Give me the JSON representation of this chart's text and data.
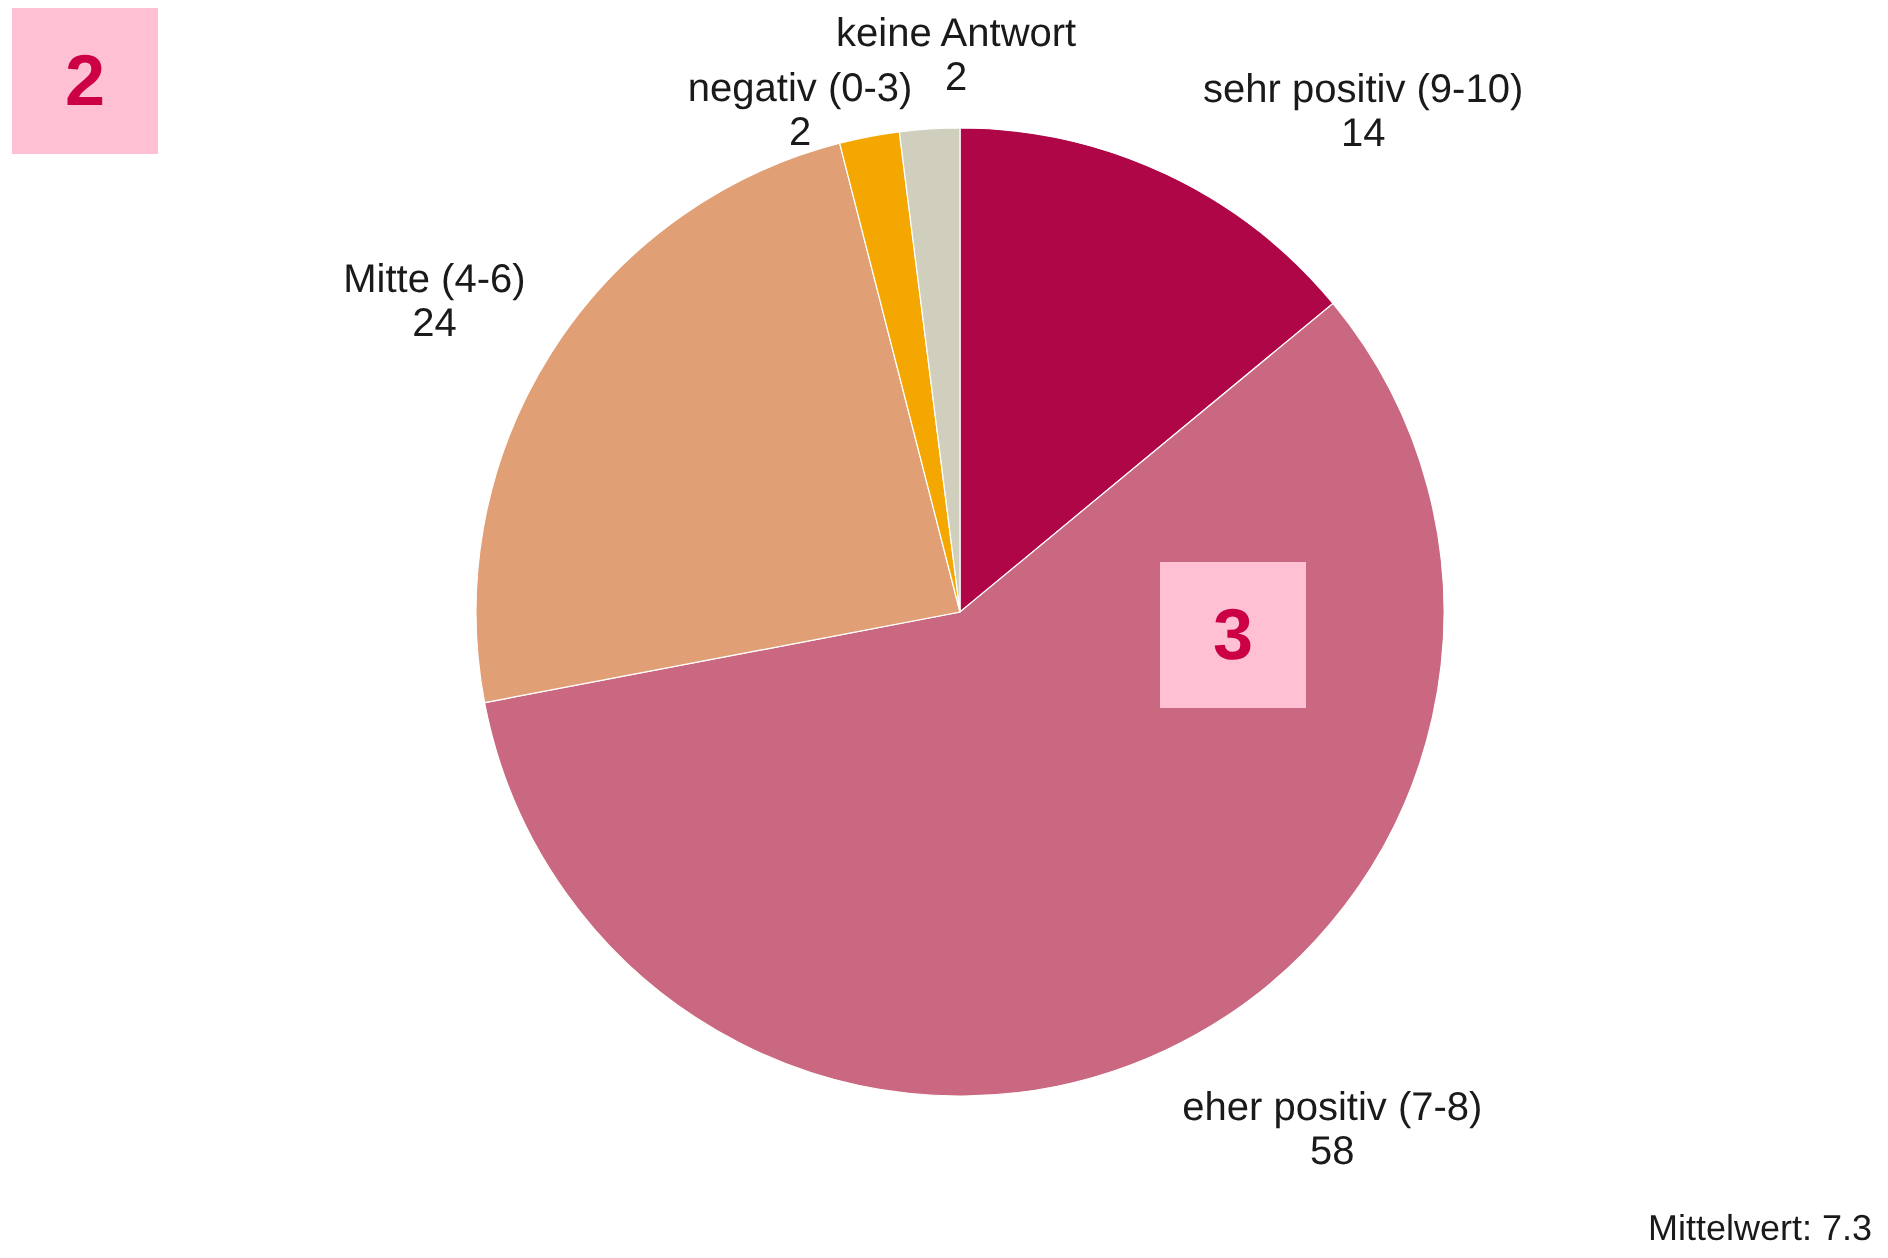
{
  "chart_data": {
    "type": "pie",
    "categories": [
      "sehr positiv (9-10)",
      "eher positiv (7-8)",
      "Mitte (4-6)",
      "negativ (0-3)",
      "keine Antwort"
    ],
    "values": [
      14,
      58,
      24,
      2,
      2
    ],
    "colors": [
      "#ae0646",
      "#c96880",
      "#e09f74",
      "#f4a700",
      "#d0cfbd"
    ],
    "data_labels": true,
    "annotations": [
      "2",
      "3",
      "Mittelwert: 7.3"
    ]
  }
}
